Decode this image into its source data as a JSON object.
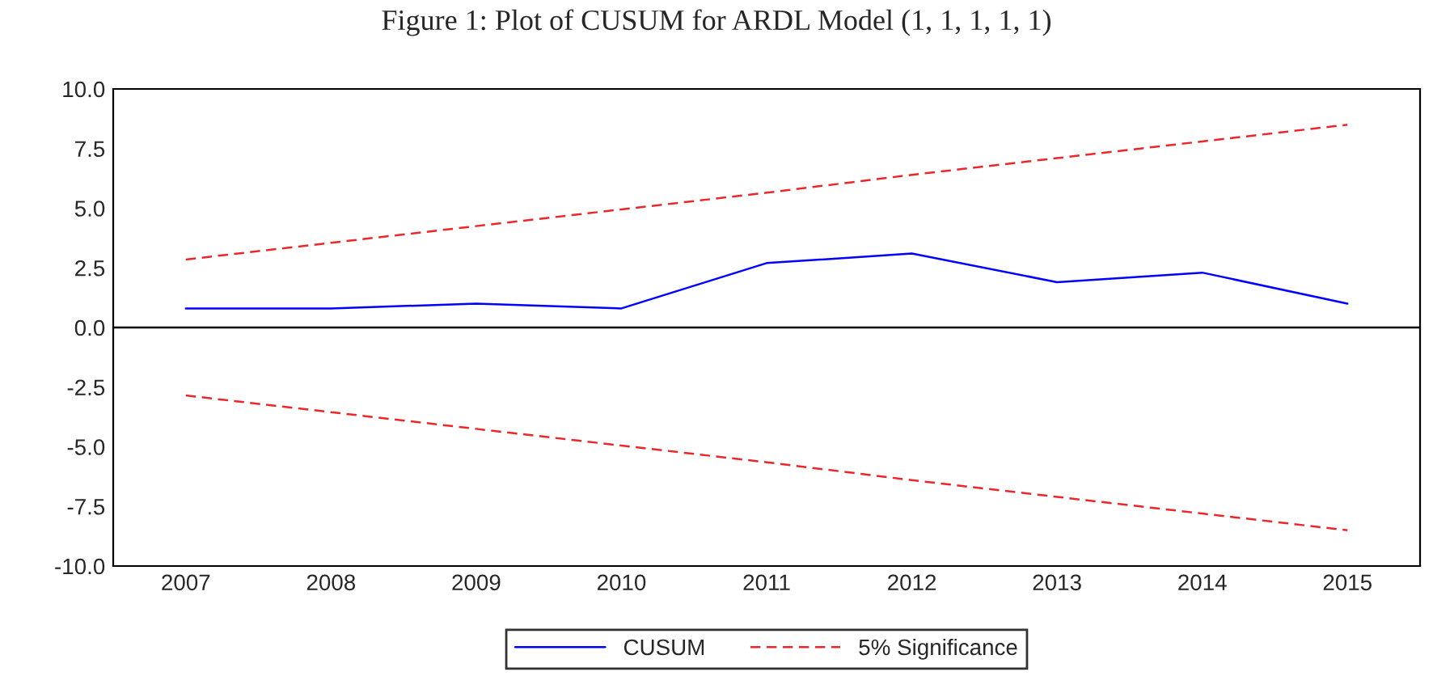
{
  "chart_data": {
    "type": "line",
    "title": "Figure 1: Plot of CUSUM for ARDL Model (1, 1, 1, 1, 1)",
    "categories": [
      "2007",
      "2008",
      "2009",
      "2010",
      "2011",
      "2012",
      "2013",
      "2014",
      "2015"
    ],
    "series": [
      {
        "name": "CUSUM",
        "color": "#0000ff",
        "line_style": "solid",
        "values": [
          0.8,
          0.8,
          1.0,
          0.8,
          2.7,
          3.1,
          1.9,
          2.3,
          1.0
        ]
      },
      {
        "name": "5% Significance",
        "color": "#e8282b",
        "line_style": "dashed",
        "values": [
          2.85,
          3.55,
          4.25,
          4.95,
          5.65,
          6.4,
          7.1,
          7.8,
          8.5
        ]
      },
      {
        "color": "#e8282b",
        "line_style": "dashed",
        "values": [
          -2.85,
          -3.55,
          -4.25,
          -4.95,
          -5.65,
          -6.4,
          -7.1,
          -7.8,
          -8.5
        ]
      }
    ],
    "ylim": [
      -10,
      10
    ],
    "yticks": [
      {
        "value": -10,
        "label": "-10.0"
      },
      {
        "value": -7.5,
        "label": "-7.5"
      },
      {
        "value": -5,
        "label": "-5.0"
      },
      {
        "value": -2.5,
        "label": "-2.5"
      },
      {
        "value": 0,
        "label": "0.0"
      },
      {
        "value": 2.5,
        "label": "2.5"
      },
      {
        "value": 5,
        "label": "5.0"
      },
      {
        "value": 7.5,
        "label": "7.5"
      },
      {
        "value": 10,
        "label": "10.0"
      }
    ],
    "ref_lines": [
      {
        "axis": "y",
        "value": 0,
        "color": "#000000",
        "line_style": "solid"
      }
    ],
    "grid": false,
    "legend": "bottom",
    "marker": "none"
  }
}
